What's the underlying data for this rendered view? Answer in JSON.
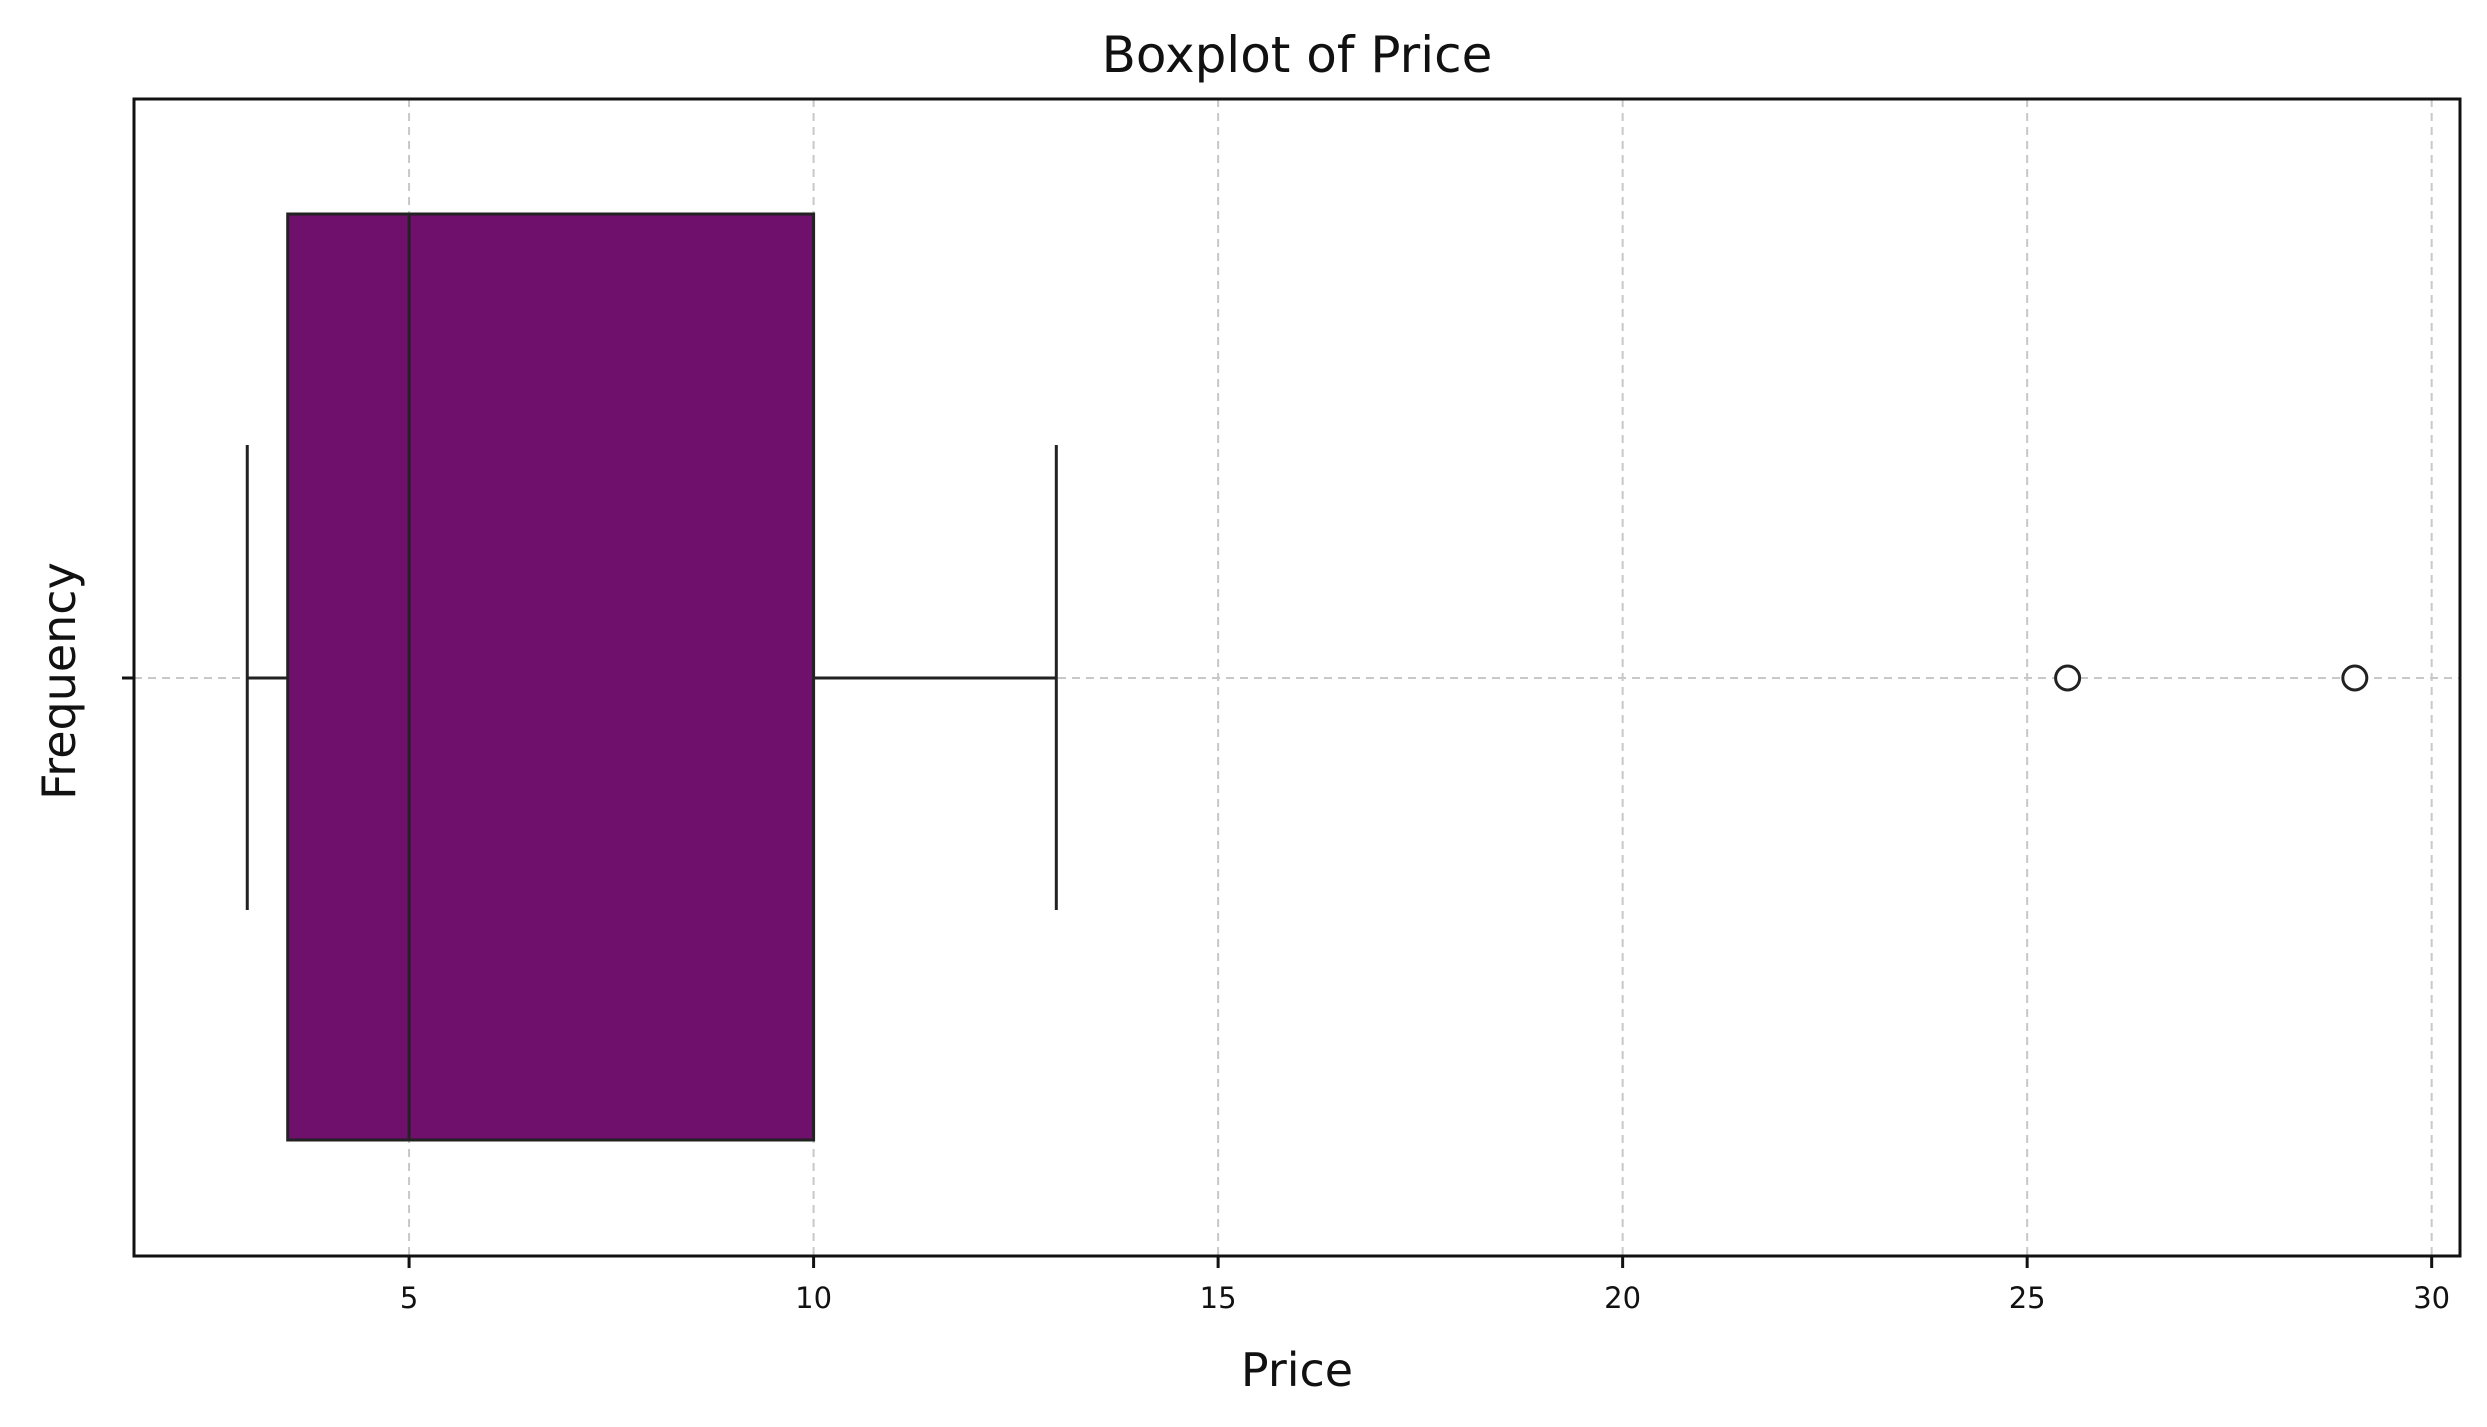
{
  "chart_data": {
    "type": "boxplot",
    "title": "Boxplot of Price",
    "xlabel": "Price",
    "ylabel": "Frequency",
    "orientation": "horizontal",
    "xlim": [
      1.6,
      30.35
    ],
    "xticks": [
      5,
      10,
      15,
      20,
      25,
      30
    ],
    "xtick_labels": [
      "5",
      "10",
      "15",
      "20",
      "25",
      "30"
    ],
    "grid": true,
    "grid_style": "dashed",
    "box": {
      "whisker_low": 3.0,
      "q1": 3.5,
      "median": 5.0,
      "q3": 10.0,
      "whisker_high": 13.0,
      "outliers": [
        25.5,
        29.05
      ]
    },
    "colors": {
      "box_fill": "#6f106d",
      "box_edge": "#222222",
      "grid": "#c8c8c8",
      "axes": "#111111"
    }
  }
}
